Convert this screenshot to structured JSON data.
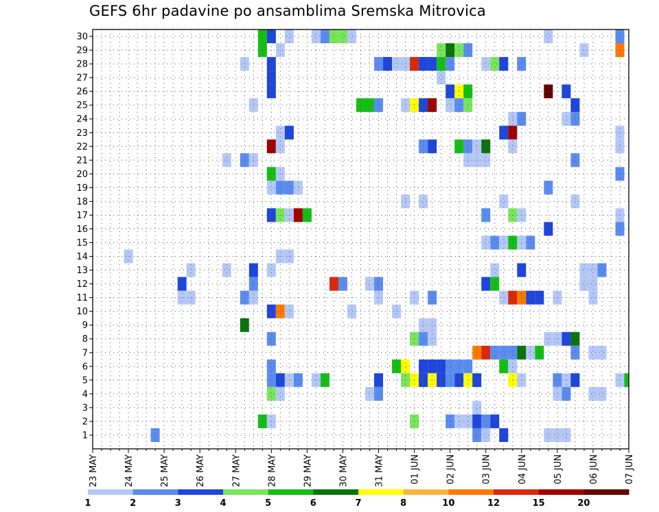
{
  "chart_data": {
    "type": "heatmap",
    "title": "GEFS 6hr padavine po ansamblima Sremska Mitrovica",
    "xlabel": "",
    "ylabel": "",
    "x_ticks": [
      "23 MAY",
      "24 MAY",
      "25 MAY",
      "26 MAY",
      "27 MAY",
      "28 MAY",
      "29 MAY",
      "30 MAY",
      "31 MAY",
      "01 JUN",
      "02 JUN",
      "03 JUN",
      "04 JUN",
      "05 JUN",
      "06 JUN",
      "07 JUN"
    ],
    "y_ticks": [
      1,
      2,
      3,
      4,
      5,
      6,
      7,
      8,
      9,
      10,
      11,
      12,
      13,
      14,
      15,
      16,
      17,
      18,
      19,
      20,
      21,
      22,
      23,
      24,
      25,
      26,
      27,
      28,
      29,
      30
    ],
    "x_unit": "6-hour step from 23 MAY 00Z",
    "xlim": [
      0,
      60
    ],
    "ylim": [
      0,
      30.5
    ],
    "grid": true,
    "colorbar": {
      "ticks": [
        "1",
        "2",
        "3",
        "4",
        "5",
        "6",
        "7",
        "8",
        "10",
        "12",
        "15",
        "20"
      ],
      "colors": [
        "#b4c8f8",
        "#5a8cf0",
        "#1e46dc",
        "#78e65a",
        "#14be14",
        "#0a730a",
        "#ffff00",
        "#ffb43c",
        "#ff7800",
        "#dc280a",
        "#a00000",
        "#640000"
      ]
    },
    "cells": [
      [
        19,
        30,
        5
      ],
      [
        20,
        30,
        3
      ],
      [
        22,
        30,
        1
      ],
      [
        25,
        30,
        1
      ],
      [
        26,
        30,
        2
      ],
      [
        27,
        30,
        4
      ],
      [
        28,
        30,
        4
      ],
      [
        29,
        30,
        1
      ],
      [
        51,
        30,
        1
      ],
      [
        59,
        30,
        2
      ],
      [
        19,
        29,
        5
      ],
      [
        21,
        29,
        1
      ],
      [
        39,
        29,
        4
      ],
      [
        40,
        29,
        6
      ],
      [
        41,
        29,
        4
      ],
      [
        42,
        29,
        2
      ],
      [
        55,
        29,
        1
      ],
      [
        59,
        29,
        9
      ],
      [
        17,
        28,
        1
      ],
      [
        20,
        28,
        3
      ],
      [
        32,
        28,
        2
      ],
      [
        33,
        28,
        3
      ],
      [
        34,
        28,
        1
      ],
      [
        35,
        28,
        1
      ],
      [
        36,
        28,
        10
      ],
      [
        37,
        28,
        3
      ],
      [
        38,
        28,
        3
      ],
      [
        39,
        28,
        5
      ],
      [
        40,
        28,
        2
      ],
      [
        44,
        28,
        1
      ],
      [
        45,
        28,
        4
      ],
      [
        46,
        28,
        3
      ],
      [
        48,
        28,
        2
      ],
      [
        20,
        27,
        3
      ],
      [
        39,
        27,
        1
      ],
      [
        20,
        26,
        3
      ],
      [
        40,
        26,
        3
      ],
      [
        41,
        26,
        7
      ],
      [
        42,
        26,
        5
      ],
      [
        51,
        26,
        12
      ],
      [
        53,
        26,
        3
      ],
      [
        18,
        25,
        1
      ],
      [
        30,
        25,
        5
      ],
      [
        31,
        25,
        5
      ],
      [
        32,
        25,
        2
      ],
      [
        35,
        25,
        1
      ],
      [
        36,
        25,
        7
      ],
      [
        37,
        25,
        3
      ],
      [
        38,
        25,
        11
      ],
      [
        40,
        25,
        1
      ],
      [
        41,
        25,
        2
      ],
      [
        42,
        25,
        4
      ],
      [
        54,
        25,
        3
      ],
      [
        47,
        24,
        1
      ],
      [
        48,
        24,
        2
      ],
      [
        53,
        24,
        1
      ],
      [
        54,
        24,
        2
      ],
      [
        21,
        23,
        1
      ],
      [
        22,
        23,
        3
      ],
      [
        46,
        23,
        3
      ],
      [
        47,
        23,
        11
      ],
      [
        59,
        23,
        1
      ],
      [
        20,
        22,
        11
      ],
      [
        21,
        22,
        1
      ],
      [
        37,
        22,
        2
      ],
      [
        38,
        22,
        3
      ],
      [
        41,
        22,
        5
      ],
      [
        42,
        22,
        2
      ],
      [
        43,
        22,
        1
      ],
      [
        44,
        22,
        6
      ],
      [
        47,
        22,
        1
      ],
      [
        59,
        22,
        1
      ],
      [
        15,
        21,
        1
      ],
      [
        17,
        21,
        2
      ],
      [
        18,
        21,
        1
      ],
      [
        42,
        21,
        1
      ],
      [
        43,
        21,
        1
      ],
      [
        44,
        21,
        1
      ],
      [
        54,
        21,
        2
      ],
      [
        20,
        20,
        5
      ],
      [
        21,
        20,
        1
      ],
      [
        59,
        20,
        2
      ],
      [
        20,
        19,
        1
      ],
      [
        21,
        19,
        2
      ],
      [
        22,
        19,
        2
      ],
      [
        23,
        19,
        1
      ],
      [
        51,
        19,
        2
      ],
      [
        35,
        18,
        1
      ],
      [
        37,
        18,
        1
      ],
      [
        46,
        18,
        1
      ],
      [
        54,
        18,
        1
      ],
      [
        20,
        17,
        3
      ],
      [
        21,
        17,
        4
      ],
      [
        22,
        17,
        1
      ],
      [
        23,
        17,
        11
      ],
      [
        24,
        17,
        5
      ],
      [
        44,
        17,
        2
      ],
      [
        47,
        17,
        4
      ],
      [
        48,
        17,
        1
      ],
      [
        59,
        17,
        1
      ],
      [
        51,
        16,
        3
      ],
      [
        59,
        16,
        2
      ],
      [
        44,
        15,
        1
      ],
      [
        45,
        15,
        2
      ],
      [
        46,
        15,
        1
      ],
      [
        47,
        15,
        5
      ],
      [
        48,
        15,
        1
      ],
      [
        49,
        15,
        2
      ],
      [
        4,
        14,
        1
      ],
      [
        21,
        14,
        1
      ],
      [
        22,
        14,
        1
      ],
      [
        11,
        13,
        1
      ],
      [
        15,
        13,
        1
      ],
      [
        18,
        13,
        3
      ],
      [
        20,
        13,
        1
      ],
      [
        45,
        13,
        1
      ],
      [
        48,
        13,
        3
      ],
      [
        55,
        13,
        1
      ],
      [
        56,
        13,
        1
      ],
      [
        57,
        13,
        2
      ],
      [
        10,
        12,
        3
      ],
      [
        18,
        12,
        2
      ],
      [
        27,
        12,
        10
      ],
      [
        28,
        12,
        2
      ],
      [
        31,
        12,
        1
      ],
      [
        32,
        12,
        2
      ],
      [
        44,
        12,
        3
      ],
      [
        45,
        12,
        5
      ],
      [
        55,
        12,
        1
      ],
      [
        56,
        12,
        1
      ],
      [
        10,
        11,
        1
      ],
      [
        11,
        11,
        1
      ],
      [
        17,
        11,
        2
      ],
      [
        18,
        11,
        1
      ],
      [
        32,
        11,
        1
      ],
      [
        36,
        11,
        1
      ],
      [
        38,
        11,
        2
      ],
      [
        46,
        11,
        1
      ],
      [
        47,
        11,
        10
      ],
      [
        48,
        11,
        9
      ],
      [
        49,
        11,
        3
      ],
      [
        50,
        11,
        3
      ],
      [
        52,
        11,
        1
      ],
      [
        56,
        11,
        1
      ],
      [
        20,
        10,
        3
      ],
      [
        21,
        10,
        9
      ],
      [
        22,
        10,
        1
      ],
      [
        29,
        10,
        1
      ],
      [
        34,
        10,
        1
      ],
      [
        17,
        9,
        6
      ],
      [
        37,
        9,
        1
      ],
      [
        38,
        9,
        1
      ],
      [
        20,
        8,
        2
      ],
      [
        36,
        8,
        4
      ],
      [
        37,
        8,
        2
      ],
      [
        38,
        8,
        1
      ],
      [
        51,
        8,
        1
      ],
      [
        52,
        8,
        1
      ],
      [
        53,
        8,
        3
      ],
      [
        54,
        8,
        6
      ],
      [
        43,
        7,
        9
      ],
      [
        44,
        7,
        10
      ],
      [
        45,
        7,
        2
      ],
      [
        46,
        7,
        2
      ],
      [
        47,
        7,
        2
      ],
      [
        48,
        7,
        6
      ],
      [
        49,
        7,
        1
      ],
      [
        50,
        7,
        5
      ],
      [
        54,
        7,
        2
      ],
      [
        56,
        7,
        1
      ],
      [
        57,
        7,
        1
      ],
      [
        20,
        6,
        2
      ],
      [
        34,
        6,
        5
      ],
      [
        35,
        6,
        7
      ],
      [
        37,
        6,
        3
      ],
      [
        38,
        6,
        3
      ],
      [
        39,
        6,
        3
      ],
      [
        40,
        6,
        2
      ],
      [
        41,
        6,
        2
      ],
      [
        42,
        6,
        2
      ],
      [
        46,
        6,
        5
      ],
      [
        47,
        6,
        1
      ],
      [
        20,
        5,
        2
      ],
      [
        21,
        5,
        3
      ],
      [
        22,
        5,
        1
      ],
      [
        23,
        5,
        2
      ],
      [
        25,
        5,
        1
      ],
      [
        26,
        5,
        5
      ],
      [
        32,
        5,
        3
      ],
      [
        35,
        5,
        4
      ],
      [
        36,
        5,
        7
      ],
      [
        37,
        5,
        3
      ],
      [
        38,
        5,
        7
      ],
      [
        39,
        5,
        3
      ],
      [
        40,
        5,
        2
      ],
      [
        41,
        5,
        3
      ],
      [
        42,
        5,
        7
      ],
      [
        43,
        5,
        3
      ],
      [
        47,
        5,
        7
      ],
      [
        48,
        5,
        1
      ],
      [
        52,
        5,
        2
      ],
      [
        53,
        5,
        1
      ],
      [
        54,
        5,
        3
      ],
      [
        59,
        5,
        1
      ],
      [
        60,
        5,
        5
      ],
      [
        20,
        4,
        4
      ],
      [
        21,
        4,
        1
      ],
      [
        31,
        4,
        1
      ],
      [
        32,
        4,
        2
      ],
      [
        52,
        4,
        1
      ],
      [
        53,
        4,
        2
      ],
      [
        56,
        4,
        1
      ],
      [
        57,
        4,
        1
      ],
      [
        43,
        3,
        1
      ],
      [
        19,
        2,
        5
      ],
      [
        20,
        2,
        1
      ],
      [
        36,
        2,
        4
      ],
      [
        40,
        2,
        2
      ],
      [
        41,
        2,
        1
      ],
      [
        42,
        2,
        1
      ],
      [
        43,
        2,
        3
      ],
      [
        44,
        2,
        2
      ],
      [
        45,
        2,
        3
      ],
      [
        7,
        1,
        2
      ],
      [
        43,
        1,
        2
      ],
      [
        44,
        1,
        1
      ],
      [
        46,
        1,
        3
      ],
      [
        51,
        1,
        1
      ],
      [
        52,
        1,
        1
      ],
      [
        53,
        1,
        1
      ]
    ]
  }
}
